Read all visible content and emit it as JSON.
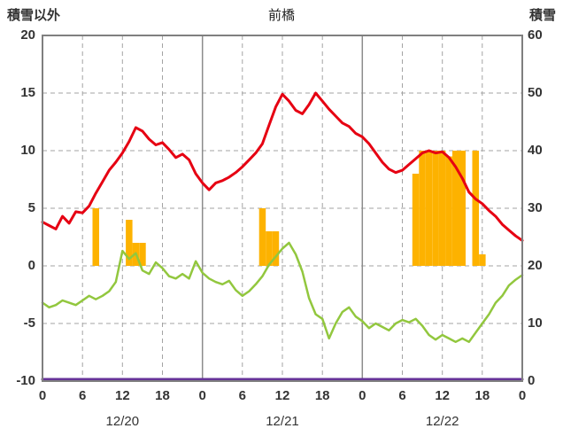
{
  "chart_data": {
    "type": "line",
    "title": "前橋",
    "left_axis": {
      "label": "積雪以外",
      "min": -10,
      "max": 20,
      "ticks": [
        20,
        15,
        10,
        5,
        0,
        -5,
        -10
      ]
    },
    "right_axis": {
      "label": "積雪",
      "min": 0,
      "max": 60,
      "ticks": [
        60,
        50,
        40,
        30,
        20,
        10,
        0
      ]
    },
    "x_axis": {
      "hours_total": 72,
      "tick_interval": 6,
      "tick_labels": [
        "0",
        "6",
        "12",
        "18",
        "0",
        "6",
        "12",
        "18",
        "0",
        "6",
        "12",
        "18",
        "0"
      ],
      "day_labels": [
        "12/20",
        "12/21",
        "12/22"
      ],
      "day_boundaries": [
        24,
        48
      ]
    },
    "style": {
      "grid_color": "#a3a3a3",
      "day_line_color": "#8c8c8c",
      "border_color": "#7f7f7f",
      "text_color": "#333333",
      "background": "#ffffff"
    },
    "series": [
      {
        "name": "sunshine-bars",
        "type": "bar",
        "axis": "left",
        "baseline": 0,
        "color": "#fdb200",
        "points": [
          {
            "hour": 8,
            "value": 5
          },
          {
            "hour": 13,
            "value": 4
          },
          {
            "hour": 14,
            "value": 2
          },
          {
            "hour": 15,
            "value": 2
          },
          {
            "hour": 33,
            "value": 5
          },
          {
            "hour": 34,
            "value": 3
          },
          {
            "hour": 35,
            "value": 3
          },
          {
            "hour": 56,
            "value": 8
          },
          {
            "hour": 57,
            "value": 10
          },
          {
            "hour": 58,
            "value": 10
          },
          {
            "hour": 59,
            "value": 10
          },
          {
            "hour": 60,
            "value": 10
          },
          {
            "hour": 61,
            "value": 9.5
          },
          {
            "hour": 62,
            "value": 10
          },
          {
            "hour": 63,
            "value": 10
          },
          {
            "hour": 65,
            "value": 10
          },
          {
            "hour": 66,
            "value": 1
          }
        ]
      },
      {
        "name": "snow-depth-line",
        "type": "line",
        "axis": "right",
        "color": "#663399",
        "width": 3,
        "x": [
          0,
          72
        ],
        "values": [
          0,
          0
        ]
      },
      {
        "name": "green-line",
        "type": "line",
        "axis": "left",
        "color": "#92c73e",
        "width": 2.5,
        "values": [
          -3.2,
          -3.6,
          -3.4,
          -3.0,
          -3.2,
          -3.4,
          -3.0,
          -2.6,
          -2.9,
          -2.6,
          -2.2,
          -1.4,
          1.3,
          0.6,
          1.1,
          -0.4,
          -0.7,
          0.3,
          -0.2,
          -0.9,
          -1.1,
          -0.7,
          -1.1,
          0.4,
          -0.6,
          -1.1,
          -1.4,
          -1.6,
          -1.3,
          -2.1,
          -2.6,
          -2.2,
          -1.6,
          -0.9,
          0.1,
          0.8,
          1.5,
          2.0,
          1.0,
          -0.5,
          -2.8,
          -4.2,
          -4.6,
          -6.3,
          -5.0,
          -4.0,
          -3.6,
          -4.4,
          -4.8,
          -5.4,
          -5.0,
          -5.3,
          -5.6,
          -5.0,
          -4.7,
          -4.9,
          -4.6,
          -5.2,
          -6.0,
          -6.4,
          -6.0,
          -6.3,
          -6.6,
          -6.3,
          -6.6,
          -5.8,
          -5.0,
          -4.2,
          -3.2,
          -2.6,
          -1.7,
          -1.2,
          -0.8
        ]
      },
      {
        "name": "temperature-line",
        "type": "line",
        "axis": "left",
        "color": "#e60012",
        "width": 3,
        "values": [
          3.8,
          3.5,
          3.2,
          4.3,
          3.7,
          4.7,
          4.6,
          5.2,
          6.3,
          7.3,
          8.3,
          9.0,
          9.8,
          10.8,
          12.0,
          11.7,
          11.0,
          10.5,
          10.7,
          10.1,
          9.4,
          9.7,
          9.2,
          8.0,
          7.2,
          6.6,
          7.2,
          7.4,
          7.7,
          8.1,
          8.6,
          9.2,
          9.8,
          10.6,
          12.2,
          13.8,
          14.9,
          14.3,
          13.5,
          13.2,
          14.0,
          15.0,
          14.3,
          13.6,
          13.0,
          12.4,
          12.1,
          11.5,
          11.2,
          10.6,
          9.8,
          9.0,
          8.4,
          8.1,
          8.3,
          8.8,
          9.3,
          9.8,
          10.0,
          9.8,
          9.9,
          9.4,
          8.6,
          7.6,
          6.4,
          5.8,
          5.4,
          4.8,
          4.3,
          3.6,
          3.1,
          2.6,
          2.2
        ]
      }
    ]
  }
}
